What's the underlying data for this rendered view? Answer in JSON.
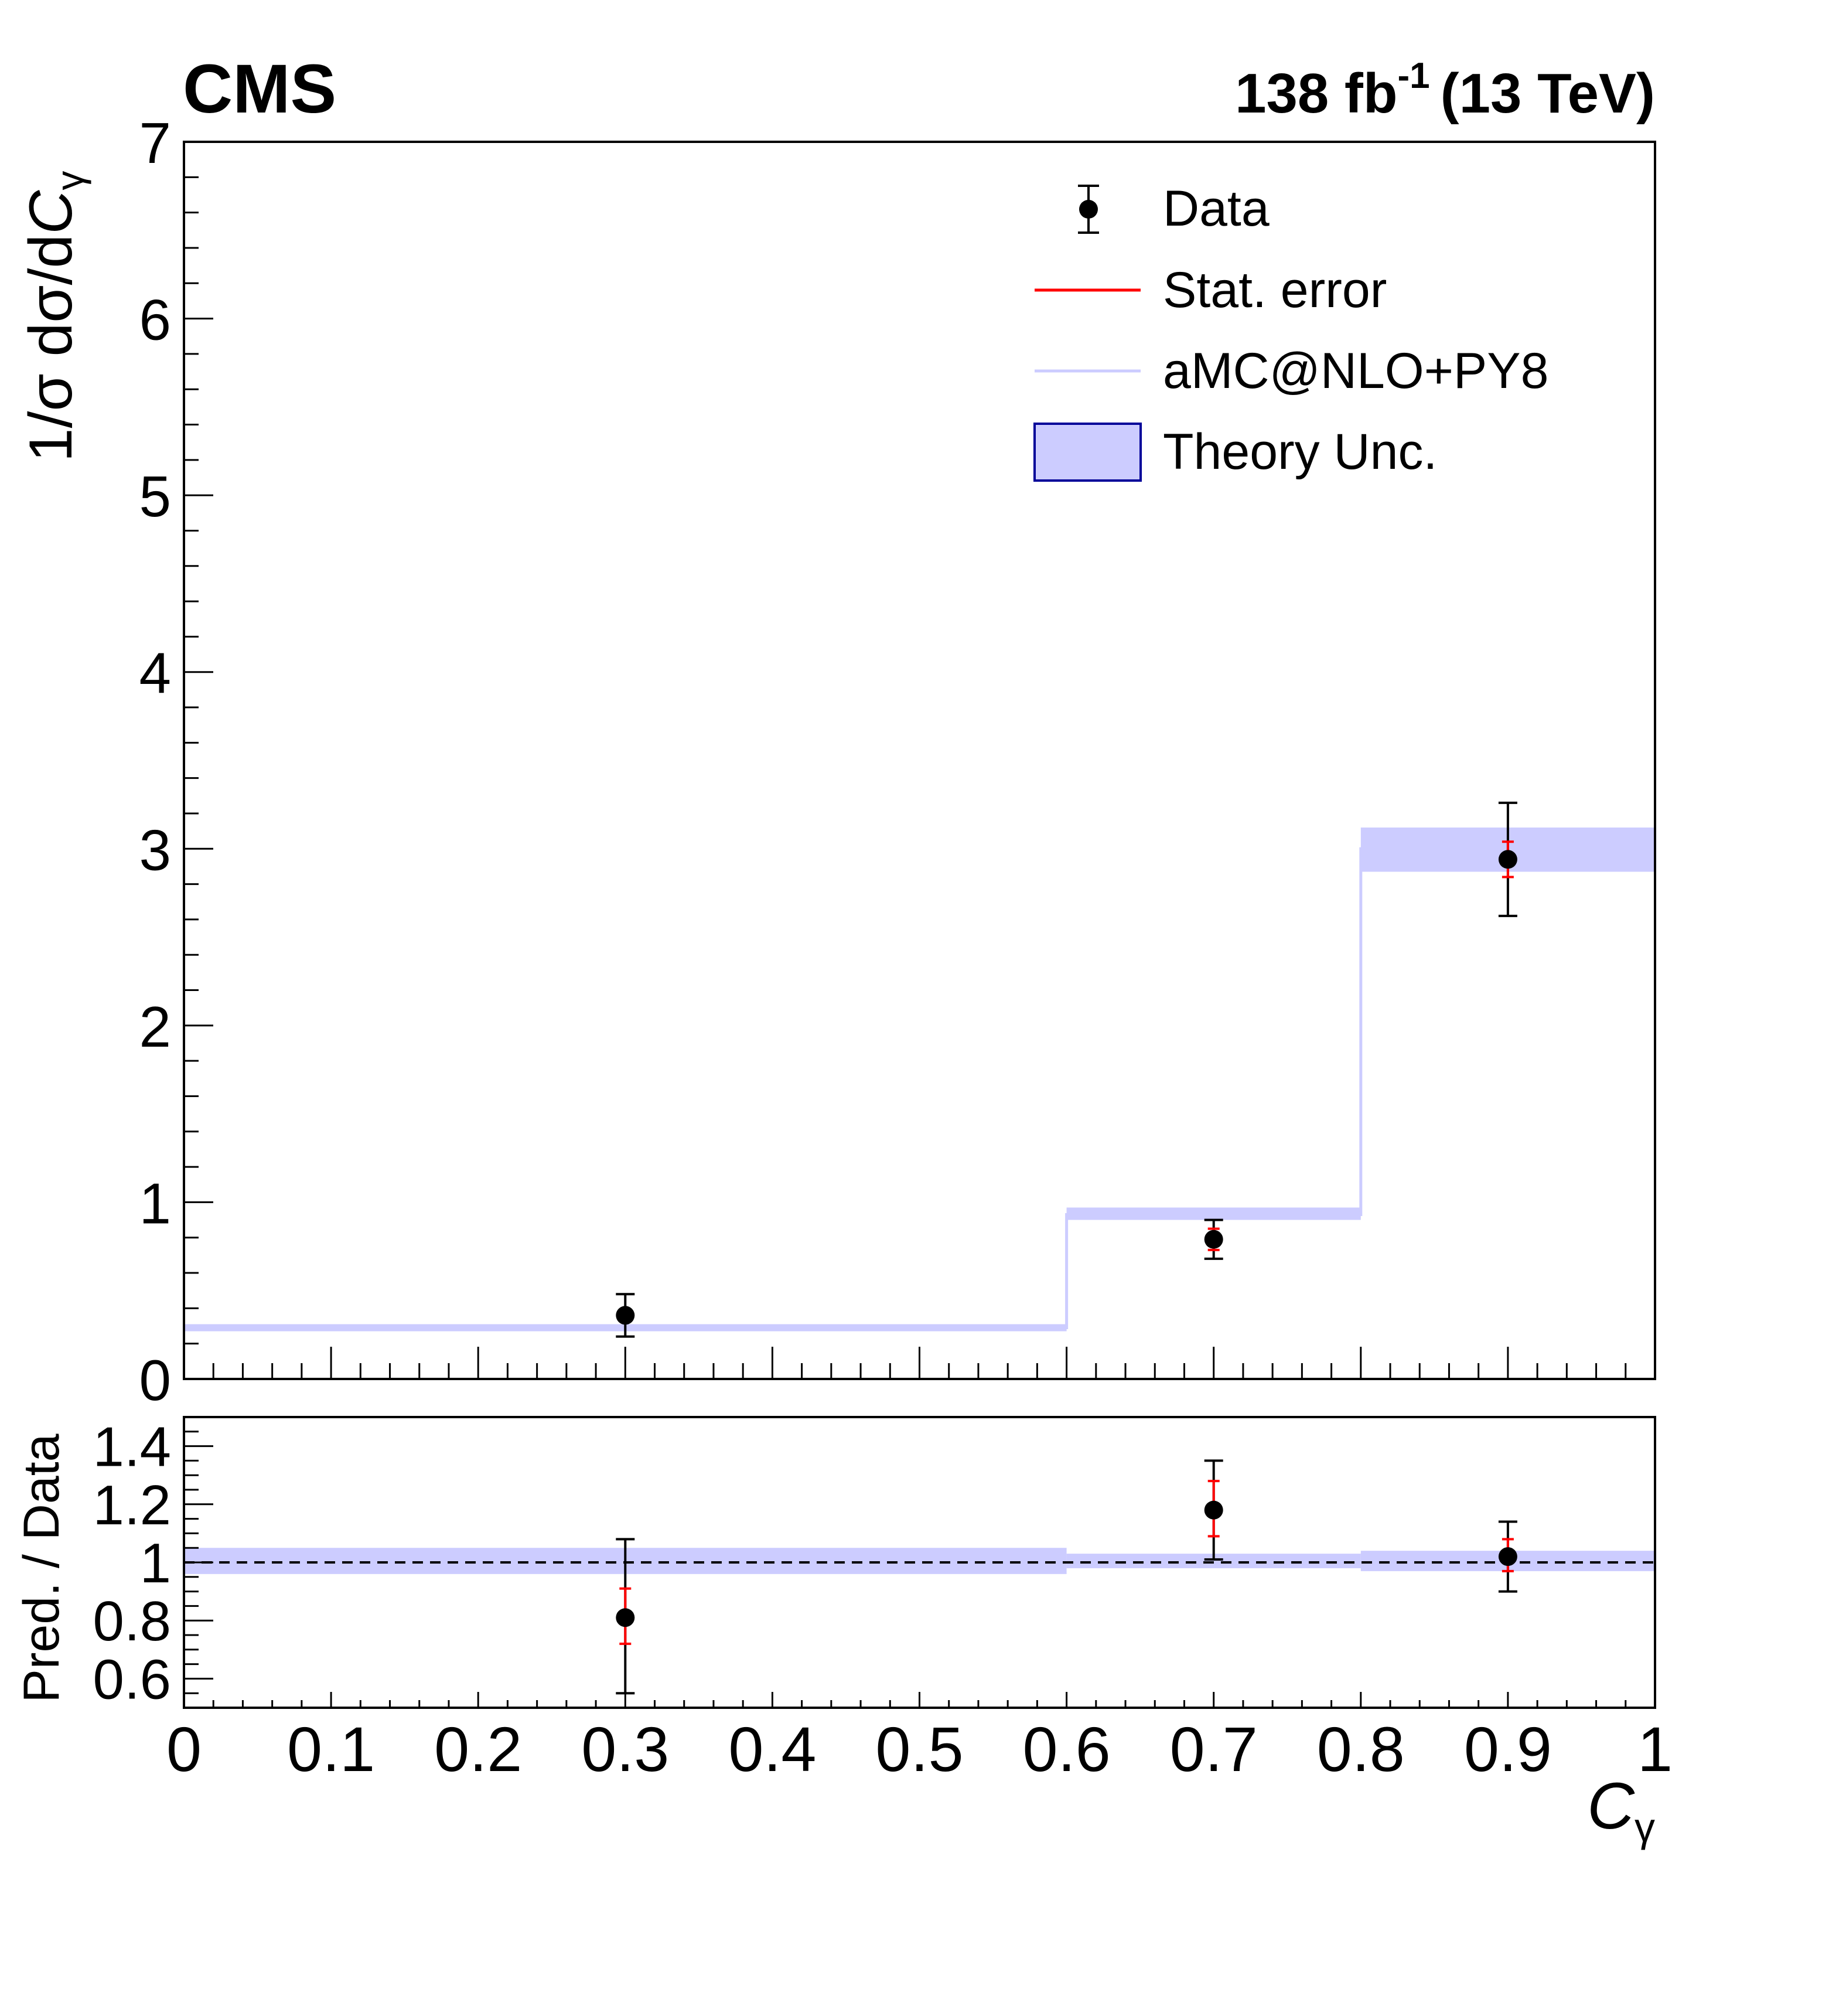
{
  "header": {
    "experiment": "CMS",
    "lumi_value": "138 fb",
    "lumi_exponent": "-1",
    "energy": "(13 TeV)"
  },
  "legend": {
    "data": "Data",
    "stat": "Stat. error",
    "mc": "aMC@NLO+PY8",
    "theory": "Theory Unc."
  },
  "colors": {
    "data": "#000000",
    "stat_error": "#ff0000",
    "mc_line": "#ccccff",
    "theory_band": "#ccccff",
    "theory_border": "#000099"
  },
  "chart_data": [
    {
      "type": "scatter",
      "panel": "main",
      "ylabel_prefix": "1/σ dσ/d",
      "ylabel_var": "C",
      "ylabel_sub": "γ",
      "xlim": [
        0,
        1
      ],
      "ylim": [
        0,
        7
      ],
      "yticks": [
        0,
        1,
        2,
        3,
        4,
        5,
        6,
        7
      ],
      "bins": [
        {
          "lo": 0.0,
          "hi": 0.6,
          "center": 0.3,
          "pred": 0.29,
          "pred_lo": 0.27,
          "pred_hi": 0.31,
          "data": 0.36,
          "stat_lo": 0.33,
          "stat_hi": 0.39,
          "tot_lo": 0.24,
          "tot_hi": 0.48
        },
        {
          "lo": 0.6,
          "hi": 0.8,
          "center": 0.7,
          "pred": 0.93,
          "pred_lo": 0.9,
          "pred_hi": 0.97,
          "data": 0.79,
          "stat_lo": 0.73,
          "stat_hi": 0.85,
          "tot_lo": 0.68,
          "tot_hi": 0.9
        },
        {
          "lo": 0.8,
          "hi": 1.0,
          "center": 0.9,
          "pred": 3.0,
          "pred_lo": 2.87,
          "pred_hi": 3.12,
          "data": 2.94,
          "stat_lo": 2.84,
          "stat_hi": 3.04,
          "tot_lo": 2.62,
          "tot_hi": 3.26
        }
      ]
    },
    {
      "type": "scatter",
      "panel": "ratio",
      "ylabel": "Pred. / Data",
      "xlabel_var": "C",
      "xlabel_sub": "γ",
      "xlim": [
        0,
        1
      ],
      "ylim": [
        0.5,
        1.5
      ],
      "yticks": [
        0.6,
        0.8,
        1,
        1.2,
        1.4
      ],
      "ytick_labels": [
        "0.6",
        "0.8",
        "1",
        "1.2",
        "1.4"
      ],
      "xticks": [
        0,
        0.1,
        0.2,
        0.3,
        0.4,
        0.5,
        0.6,
        0.7,
        0.8,
        0.9,
        1
      ],
      "xtick_labels": [
        "0",
        "0.1",
        "0.2",
        "0.3",
        "0.4",
        "0.5",
        "0.6",
        "0.7",
        "0.8",
        "0.9",
        "1"
      ],
      "reference_line": 1,
      "bins": [
        {
          "lo": 0.0,
          "hi": 0.6,
          "center": 0.3,
          "band_lo": 0.96,
          "band_hi": 1.05,
          "ratio": 0.81,
          "stat_lo": 0.72,
          "stat_hi": 0.91,
          "tot_lo": 0.55,
          "tot_hi": 1.08
        },
        {
          "lo": 0.6,
          "hi": 0.8,
          "center": 0.7,
          "band_lo": 0.98,
          "band_hi": 1.03,
          "ratio": 1.18,
          "stat_lo": 1.09,
          "stat_hi": 1.28,
          "tot_lo": 1.01,
          "tot_hi": 1.35
        },
        {
          "lo": 0.8,
          "hi": 1.0,
          "center": 0.9,
          "band_lo": 0.97,
          "band_hi": 1.04,
          "ratio": 1.02,
          "stat_lo": 0.97,
          "stat_hi": 1.08,
          "tot_lo": 0.9,
          "tot_hi": 1.14
        }
      ]
    }
  ]
}
